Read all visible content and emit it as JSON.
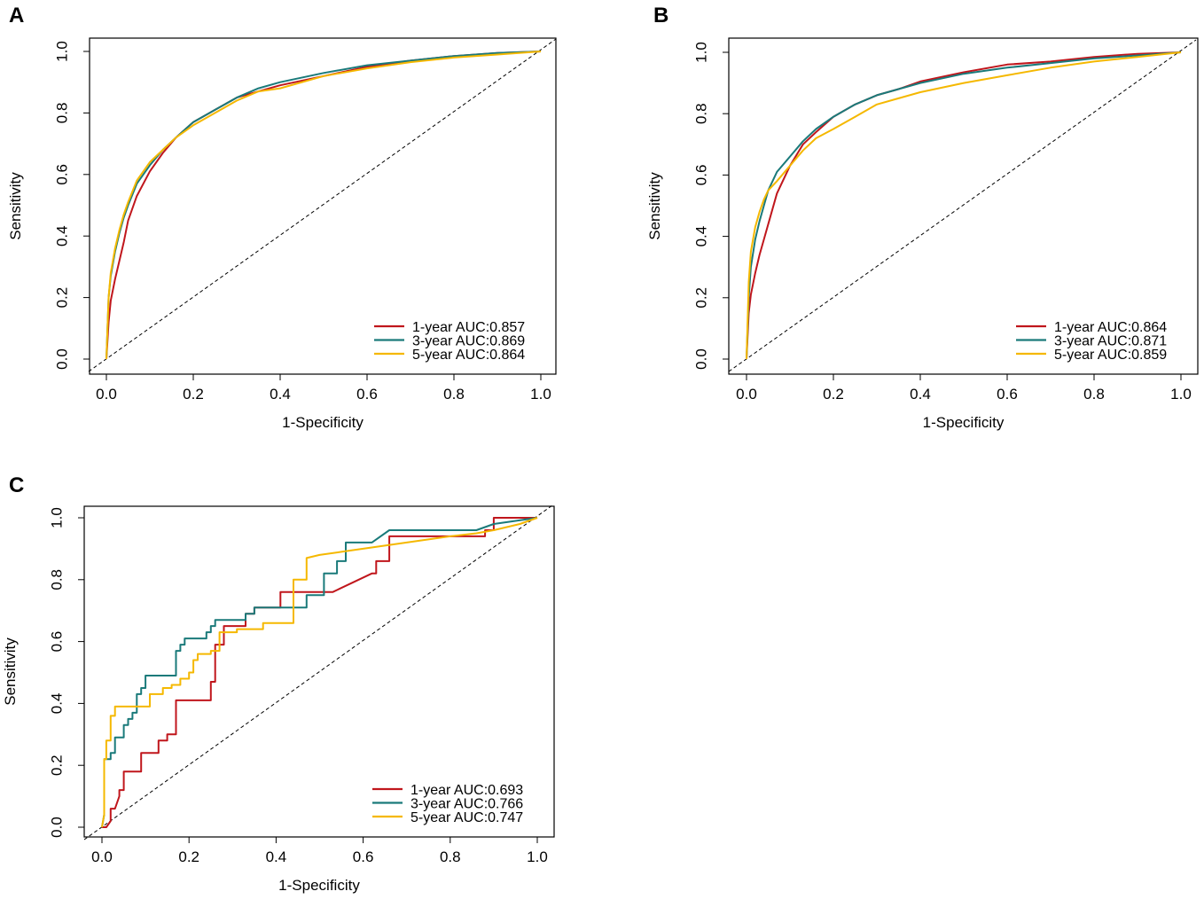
{
  "chart_data": [
    {
      "panel": "A",
      "type": "line",
      "xlabel": "1-Specificity",
      "ylabel": "Sensitivity",
      "xlim": [
        0,
        1
      ],
      "ylim": [
        0,
        1
      ],
      "xticks": [
        "0.0",
        "0.2",
        "0.4",
        "0.6",
        "0.8",
        "1.0"
      ],
      "yticks": [
        "0.0",
        "0.2",
        "0.4",
        "0.6",
        "0.8",
        "1.0"
      ],
      "reference_line": "diagonal dashed",
      "legend_position": "bottom-right",
      "series": [
        {
          "name": "1-year AUC:0.857",
          "color": "#c0161c",
          "x": [
            0,
            0.005,
            0.01,
            0.02,
            0.03,
            0.04,
            0.05,
            0.07,
            0.1,
            0.13,
            0.16,
            0.2,
            0.25,
            0.3,
            0.35,
            0.4,
            0.5,
            0.6,
            0.7,
            0.8,
            0.9,
            1.0
          ],
          "y": [
            0,
            0.12,
            0.19,
            0.26,
            0.32,
            0.38,
            0.45,
            0.53,
            0.61,
            0.67,
            0.72,
            0.77,
            0.81,
            0.85,
            0.87,
            0.89,
            0.92,
            0.95,
            0.97,
            0.985,
            0.995,
            1.0
          ]
        },
        {
          "name": "3-year AUC:0.869",
          "color": "#1a7a7a",
          "x": [
            0,
            0.005,
            0.01,
            0.02,
            0.03,
            0.04,
            0.05,
            0.07,
            0.1,
            0.13,
            0.16,
            0.2,
            0.25,
            0.3,
            0.35,
            0.4,
            0.5,
            0.6,
            0.7,
            0.8,
            0.9,
            1.0
          ],
          "y": [
            0,
            0.2,
            0.27,
            0.35,
            0.41,
            0.46,
            0.5,
            0.57,
            0.63,
            0.68,
            0.72,
            0.77,
            0.81,
            0.85,
            0.88,
            0.9,
            0.93,
            0.955,
            0.97,
            0.985,
            0.995,
            1.0
          ]
        },
        {
          "name": "5-year AUC:0.864",
          "color": "#f5b800",
          "x": [
            0,
            0.005,
            0.01,
            0.02,
            0.03,
            0.04,
            0.05,
            0.07,
            0.1,
            0.13,
            0.16,
            0.2,
            0.25,
            0.3,
            0.35,
            0.4,
            0.5,
            0.6,
            0.7,
            0.8,
            0.9,
            1.0
          ],
          "y": [
            0,
            0.2,
            0.28,
            0.36,
            0.42,
            0.47,
            0.51,
            0.58,
            0.64,
            0.68,
            0.72,
            0.76,
            0.8,
            0.84,
            0.87,
            0.88,
            0.92,
            0.945,
            0.965,
            0.98,
            0.99,
            1.0
          ]
        }
      ]
    },
    {
      "panel": "B",
      "type": "line",
      "xlabel": "1-Specificity",
      "ylabel": "Sensitivity",
      "xlim": [
        0,
        1
      ],
      "ylim": [
        0,
        1
      ],
      "xticks": [
        "0.0",
        "0.2",
        "0.4",
        "0.6",
        "0.8",
        "1.0"
      ],
      "yticks": [
        "0.0",
        "0.2",
        "0.4",
        "0.6",
        "0.8",
        "1.0"
      ],
      "reference_line": "diagonal dashed",
      "legend_position": "bottom-right",
      "series": [
        {
          "name": "1-year AUC:0.864",
          "color": "#c0161c",
          "x": [
            0,
            0.005,
            0.01,
            0.02,
            0.03,
            0.04,
            0.05,
            0.07,
            0.1,
            0.13,
            0.16,
            0.2,
            0.25,
            0.3,
            0.35,
            0.4,
            0.5,
            0.6,
            0.7,
            0.8,
            0.9,
            1.0
          ],
          "y": [
            0,
            0.15,
            0.21,
            0.28,
            0.34,
            0.39,
            0.44,
            0.54,
            0.63,
            0.7,
            0.74,
            0.79,
            0.83,
            0.86,
            0.88,
            0.905,
            0.935,
            0.96,
            0.97,
            0.985,
            0.995,
            1.0
          ]
        },
        {
          "name": "3-year AUC:0.871",
          "color": "#1a7a7a",
          "x": [
            0,
            0.005,
            0.01,
            0.02,
            0.03,
            0.04,
            0.05,
            0.07,
            0.1,
            0.13,
            0.16,
            0.2,
            0.25,
            0.3,
            0.35,
            0.4,
            0.5,
            0.6,
            0.7,
            0.8,
            0.9,
            1.0
          ],
          "y": [
            0,
            0.2,
            0.3,
            0.39,
            0.45,
            0.5,
            0.55,
            0.61,
            0.66,
            0.71,
            0.75,
            0.79,
            0.83,
            0.86,
            0.88,
            0.9,
            0.93,
            0.95,
            0.965,
            0.98,
            0.99,
            1.0
          ]
        },
        {
          "name": "5-year AUC:0.859",
          "color": "#f5b800",
          "x": [
            0,
            0.005,
            0.01,
            0.02,
            0.03,
            0.04,
            0.05,
            0.07,
            0.1,
            0.13,
            0.16,
            0.2,
            0.25,
            0.3,
            0.35,
            0.4,
            0.5,
            0.6,
            0.7,
            0.8,
            0.9,
            1.0
          ],
          "y": [
            0,
            0.25,
            0.35,
            0.43,
            0.48,
            0.52,
            0.55,
            0.58,
            0.63,
            0.68,
            0.72,
            0.75,
            0.79,
            0.83,
            0.85,
            0.87,
            0.9,
            0.925,
            0.95,
            0.97,
            0.985,
            1.0
          ]
        }
      ]
    },
    {
      "panel": "C",
      "type": "line",
      "xlabel": "1-Specificity",
      "ylabel": "Sensitivity",
      "xlim": [
        0,
        1
      ],
      "ylim": [
        0,
        1
      ],
      "xticks": [
        "0.0",
        "0.2",
        "0.4",
        "0.6",
        "0.8",
        "1.0"
      ],
      "yticks": [
        "0.0",
        "0.2",
        "0.4",
        "0.6",
        "0.8",
        "1.0"
      ],
      "reference_line": "diagonal dashed",
      "legend_position": "bottom-right",
      "series": [
        {
          "name": "1-year AUC:0.693",
          "color": "#c0161c",
          "x": [
            0,
            0.01,
            0.02,
            0.02,
            0.03,
            0.04,
            0.04,
            0.05,
            0.05,
            0.09,
            0.09,
            0.13,
            0.13,
            0.15,
            0.15,
            0.17,
            0.17,
            0.25,
            0.25,
            0.26,
            0.26,
            0.28,
            0.28,
            0.33,
            0.33,
            0.35,
            0.35,
            0.41,
            0.41,
            0.53,
            0.62,
            0.63,
            0.63,
            0.66,
            0.66,
            0.88,
            0.88,
            0.9,
            0.9,
            0.96,
            1.0
          ],
          "y": [
            0,
            0,
            0.02,
            0.06,
            0.06,
            0.1,
            0.12,
            0.12,
            0.18,
            0.18,
            0.24,
            0.24,
            0.28,
            0.28,
            0.3,
            0.3,
            0.41,
            0.41,
            0.47,
            0.47,
            0.59,
            0.59,
            0.65,
            0.65,
            0.69,
            0.69,
            0.71,
            0.71,
            0.76,
            0.76,
            0.82,
            0.82,
            0.86,
            0.86,
            0.94,
            0.94,
            0.96,
            0.96,
            1.0,
            1.0,
            1.0
          ]
        },
        {
          "name": "3-year AUC:0.766",
          "color": "#1a7a7a",
          "x": [
            0,
            0.005,
            0.005,
            0.02,
            0.02,
            0.03,
            0.03,
            0.05,
            0.05,
            0.06,
            0.06,
            0.07,
            0.07,
            0.08,
            0.08,
            0.09,
            0.09,
            0.1,
            0.1,
            0.17,
            0.17,
            0.18,
            0.18,
            0.19,
            0.19,
            0.24,
            0.24,
            0.25,
            0.25,
            0.26,
            0.26,
            0.33,
            0.33,
            0.35,
            0.35,
            0.47,
            0.47,
            0.51,
            0.51,
            0.54,
            0.54,
            0.56,
            0.56,
            0.62,
            0.66,
            0.86,
            0.9,
            1.0
          ],
          "y": [
            0,
            0.04,
            0.22,
            0.22,
            0.24,
            0.24,
            0.29,
            0.29,
            0.33,
            0.33,
            0.35,
            0.35,
            0.37,
            0.37,
            0.43,
            0.43,
            0.45,
            0.45,
            0.49,
            0.49,
            0.57,
            0.57,
            0.59,
            0.59,
            0.61,
            0.61,
            0.63,
            0.63,
            0.65,
            0.65,
            0.67,
            0.67,
            0.69,
            0.69,
            0.71,
            0.71,
            0.75,
            0.75,
            0.82,
            0.82,
            0.86,
            0.86,
            0.92,
            0.92,
            0.96,
            0.96,
            0.98,
            1.0
          ]
        },
        {
          "name": "5-year AUC:0.747",
          "color": "#f5b800",
          "x": [
            0,
            0.005,
            0.005,
            0.01,
            0.01,
            0.02,
            0.02,
            0.03,
            0.03,
            0.05,
            0.05,
            0.11,
            0.11,
            0.14,
            0.14,
            0.16,
            0.16,
            0.18,
            0.18,
            0.2,
            0.2,
            0.21,
            0.21,
            0.22,
            0.22,
            0.25,
            0.25,
            0.27,
            0.27,
            0.31,
            0.31,
            0.37,
            0.37,
            0.43,
            0.43,
            0.44,
            0.44,
            0.47,
            0.47,
            0.5,
            0.55,
            0.6,
            0.7,
            0.8,
            0.86,
            0.9,
            0.96,
            1.0
          ],
          "y": [
            0,
            0.04,
            0.22,
            0.22,
            0.28,
            0.28,
            0.36,
            0.36,
            0.39,
            0.39,
            0.39,
            0.39,
            0.43,
            0.43,
            0.45,
            0.45,
            0.46,
            0.46,
            0.48,
            0.48,
            0.5,
            0.5,
            0.54,
            0.54,
            0.56,
            0.56,
            0.57,
            0.57,
            0.63,
            0.63,
            0.64,
            0.64,
            0.66,
            0.66,
            0.66,
            0.66,
            0.8,
            0.8,
            0.87,
            0.88,
            0.89,
            0.9,
            0.92,
            0.94,
            0.95,
            0.96,
            0.98,
            1.0
          ]
        }
      ]
    }
  ]
}
